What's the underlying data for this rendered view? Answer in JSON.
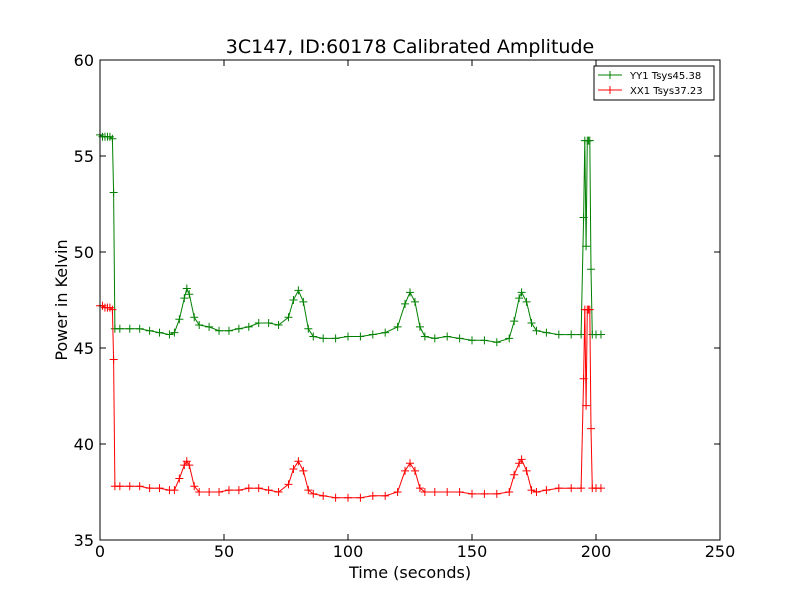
{
  "chart_data": {
    "type": "line",
    "title": "3C147, ID:60178 Calibrated Amplitude",
    "xlabel": "Time (seconds)",
    "ylabel": "Power in Kelvin",
    "xlim": [
      0,
      250
    ],
    "ylim": [
      35,
      60
    ],
    "xticks": [
      0,
      50,
      100,
      150,
      200,
      250
    ],
    "yticks": [
      35,
      40,
      45,
      50,
      55,
      60
    ],
    "xtick_labels": [
      "0",
      "50",
      "100",
      "150",
      "200",
      "250"
    ],
    "ytick_labels": [
      "35",
      "40",
      "45",
      "50",
      "55",
      "60"
    ],
    "grid": false,
    "legend_position": "top-right",
    "marker": "+",
    "series": [
      {
        "name": "YY1 Tsys45.38",
        "color": "#008000",
        "points": [
          [
            0,
            56.1
          ],
          [
            1,
            56.0
          ],
          [
            2,
            56.0
          ],
          [
            3,
            56.0
          ],
          [
            4,
            56.0
          ],
          [
            5,
            55.9
          ],
          [
            5.5,
            53.1
          ],
          [
            6,
            46.0
          ],
          [
            8,
            46.0
          ],
          [
            12,
            46.0
          ],
          [
            16,
            46.0
          ],
          [
            20,
            45.9
          ],
          [
            24,
            45.8
          ],
          [
            28,
            45.7
          ],
          [
            30,
            45.8
          ],
          [
            32,
            46.5
          ],
          [
            34,
            47.6
          ],
          [
            35,
            48.1
          ],
          [
            36,
            47.8
          ],
          [
            38,
            46.6
          ],
          [
            40,
            46.2
          ],
          [
            44,
            46.1
          ],
          [
            48,
            45.9
          ],
          [
            52,
            45.9
          ],
          [
            56,
            46.0
          ],
          [
            60,
            46.1
          ],
          [
            64,
            46.3
          ],
          [
            68,
            46.3
          ],
          [
            72,
            46.2
          ],
          [
            76,
            46.6
          ],
          [
            78,
            47.5
          ],
          [
            80,
            48.0
          ],
          [
            82,
            47.4
          ],
          [
            84,
            46.0
          ],
          [
            86,
            45.6
          ],
          [
            90,
            45.5
          ],
          [
            95,
            45.5
          ],
          [
            100,
            45.6
          ],
          [
            105,
            45.6
          ],
          [
            110,
            45.7
          ],
          [
            115,
            45.8
          ],
          [
            120,
            46.1
          ],
          [
            123,
            47.3
          ],
          [
            125,
            47.9
          ],
          [
            127,
            47.4
          ],
          [
            129,
            46.1
          ],
          [
            131,
            45.6
          ],
          [
            135,
            45.5
          ],
          [
            140,
            45.6
          ],
          [
            145,
            45.5
          ],
          [
            150,
            45.4
          ],
          [
            155,
            45.4
          ],
          [
            160,
            45.3
          ],
          [
            165,
            45.5
          ],
          [
            167,
            46.4
          ],
          [
            169,
            47.6
          ],
          [
            170,
            47.9
          ],
          [
            172,
            47.4
          ],
          [
            174,
            46.3
          ],
          [
            176,
            45.9
          ],
          [
            180,
            45.8
          ],
          [
            185,
            45.7
          ],
          [
            190,
            45.7
          ],
          [
            194,
            45.7
          ],
          [
            195,
            51.8
          ],
          [
            195.5,
            55.8
          ],
          [
            196,
            50.3
          ],
          [
            196.5,
            55.8
          ],
          [
            197,
            55.8
          ],
          [
            197.5,
            55.8
          ],
          [
            198,
            49.1
          ],
          [
            198.5,
            45.7
          ],
          [
            200,
            45.7
          ],
          [
            202,
            45.7
          ]
        ]
      },
      {
        "name": "XX1 Tsys37.23",
        "color": "#ff0000",
        "points": [
          [
            0,
            47.2
          ],
          [
            1,
            47.2
          ],
          [
            2,
            47.1
          ],
          [
            3,
            47.1
          ],
          [
            4,
            47.1
          ],
          [
            5,
            47.0
          ],
          [
            5.5,
            44.4
          ],
          [
            6,
            37.8
          ],
          [
            8,
            37.8
          ],
          [
            12,
            37.8
          ],
          [
            16,
            37.8
          ],
          [
            20,
            37.7
          ],
          [
            24,
            37.7
          ],
          [
            28,
            37.6
          ],
          [
            30,
            37.6
          ],
          [
            32,
            38.2
          ],
          [
            34,
            38.9
          ],
          [
            35,
            39.1
          ],
          [
            36,
            38.9
          ],
          [
            38,
            37.8
          ],
          [
            40,
            37.5
          ],
          [
            44,
            37.5
          ],
          [
            48,
            37.5
          ],
          [
            52,
            37.6
          ],
          [
            56,
            37.6
          ],
          [
            60,
            37.7
          ],
          [
            64,
            37.7
          ],
          [
            68,
            37.6
          ],
          [
            72,
            37.5
          ],
          [
            76,
            37.9
          ],
          [
            78,
            38.7
          ],
          [
            80,
            39.1
          ],
          [
            82,
            38.6
          ],
          [
            84,
            37.6
          ],
          [
            86,
            37.4
          ],
          [
            90,
            37.3
          ],
          [
            95,
            37.2
          ],
          [
            100,
            37.2
          ],
          [
            105,
            37.2
          ],
          [
            110,
            37.3
          ],
          [
            115,
            37.3
          ],
          [
            120,
            37.5
          ],
          [
            123,
            38.6
          ],
          [
            125,
            39.0
          ],
          [
            127,
            38.6
          ],
          [
            129,
            37.7
          ],
          [
            131,
            37.5
          ],
          [
            135,
            37.5
          ],
          [
            140,
            37.5
          ],
          [
            145,
            37.5
          ],
          [
            150,
            37.4
          ],
          [
            155,
            37.4
          ],
          [
            160,
            37.4
          ],
          [
            165,
            37.5
          ],
          [
            167,
            38.4
          ],
          [
            169,
            39.0
          ],
          [
            170,
            39.2
          ],
          [
            172,
            38.6
          ],
          [
            174,
            37.6
          ],
          [
            176,
            37.5
          ],
          [
            180,
            37.6
          ],
          [
            185,
            37.7
          ],
          [
            190,
            37.7
          ],
          [
            194,
            37.7
          ],
          [
            195,
            43.4
          ],
          [
            195.5,
            47.0
          ],
          [
            196,
            42.0
          ],
          [
            196.5,
            47.0
          ],
          [
            197,
            47.0
          ],
          [
            197.5,
            47.0
          ],
          [
            198,
            40.8
          ],
          [
            198.5,
            37.7
          ],
          [
            200,
            37.7
          ],
          [
            202,
            37.7
          ]
        ]
      }
    ]
  }
}
